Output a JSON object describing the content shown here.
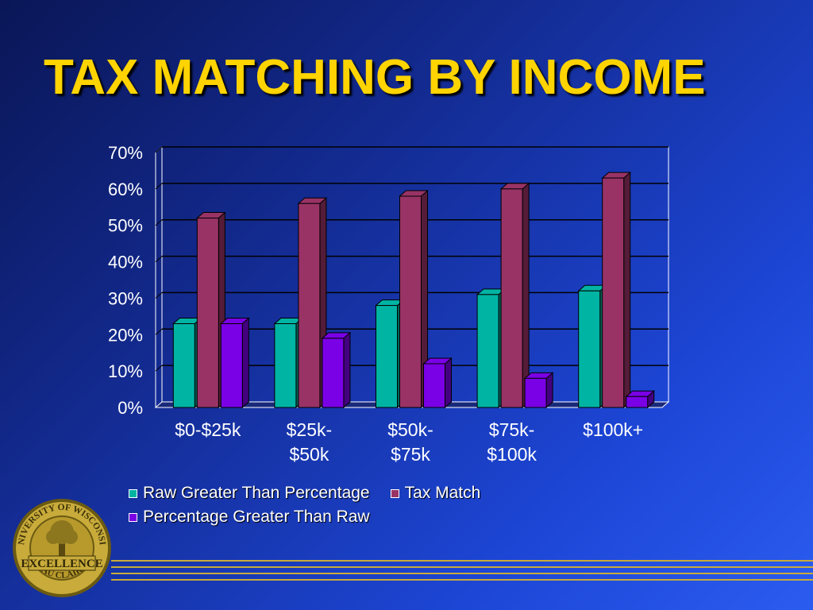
{
  "slide": {
    "title": "TAX MATCHING BY INCOME"
  },
  "logo": {
    "ring_text_top": "UNIVERSITY OF WISCONSIN",
    "ring_text_bottom": "EAU CLAIRE",
    "center_text": "EXCELLENCE"
  },
  "chart_data": {
    "type": "bar",
    "categories": [
      [
        "$0-$25k"
      ],
      [
        "$25k-",
        "$50k"
      ],
      [
        "$50k-",
        "$75k"
      ],
      [
        "$75k-",
        "$100k"
      ],
      [
        "$100k+"
      ]
    ],
    "series": [
      {
        "name": "Raw Greater Than Percentage",
        "values": [
          23,
          23,
          28,
          31,
          32
        ],
        "color": "#00b4a4"
      },
      {
        "name": "Tax Match",
        "values": [
          52,
          56,
          58,
          60,
          63
        ],
        "color": "#993366"
      },
      {
        "name": "Percentage Greater Than Raw",
        "values": [
          23,
          19,
          12,
          8,
          3
        ],
        "color": "#7a00e6"
      }
    ],
    "yticks": [
      "0%",
      "10%",
      "20%",
      "30%",
      "40%",
      "50%",
      "60%",
      "70%"
    ],
    "ylim": [
      0,
      70
    ],
    "grid": true,
    "legend_position": "bottom"
  }
}
